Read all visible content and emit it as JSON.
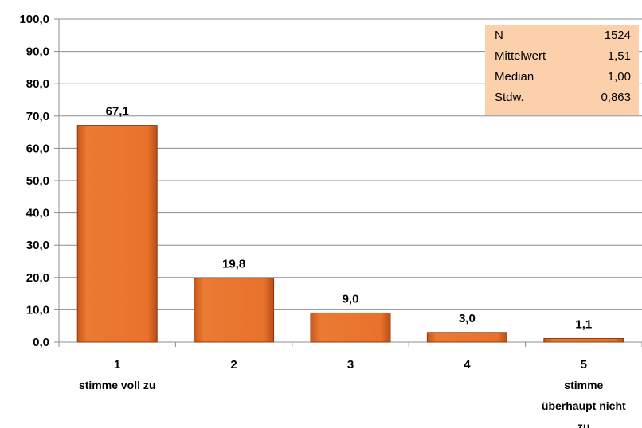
{
  "chart_data": {
    "type": "bar",
    "categories": [
      "1",
      "2",
      "3",
      "4",
      "5"
    ],
    "category_sublabels": [
      [
        "stimme voll zu"
      ],
      [],
      [],
      [],
      [
        "stimme",
        "überhaupt nicht",
        "zu"
      ]
    ],
    "values": [
      67.1,
      19.8,
      9.0,
      3.0,
      1.1
    ],
    "value_labels": [
      "67,1",
      "19,8",
      "9,0",
      "3,0",
      "1,1"
    ],
    "ylim": [
      0,
      100
    ],
    "yticks": [
      0,
      10,
      20,
      30,
      40,
      50,
      60,
      70,
      80,
      90,
      100
    ],
    "ytick_labels": [
      "0,0",
      "10,0",
      "20,0",
      "30,0",
      "40,0",
      "50,0",
      "60,0",
      "70,0",
      "80,0",
      "90,0",
      "100,0"
    ],
    "grid": true,
    "bar_color": "#e8722c",
    "bar_edge_color": "#8a3a10",
    "stats_box": {
      "bg_color": "#fbd0aa",
      "rows": [
        {
          "label": "N",
          "value": "1524"
        },
        {
          "label": "Mittelwert",
          "value": "1,51"
        },
        {
          "label": "Median",
          "value": "1,00"
        },
        {
          "label": "Stdw.",
          "value": "0,863"
        }
      ]
    }
  }
}
